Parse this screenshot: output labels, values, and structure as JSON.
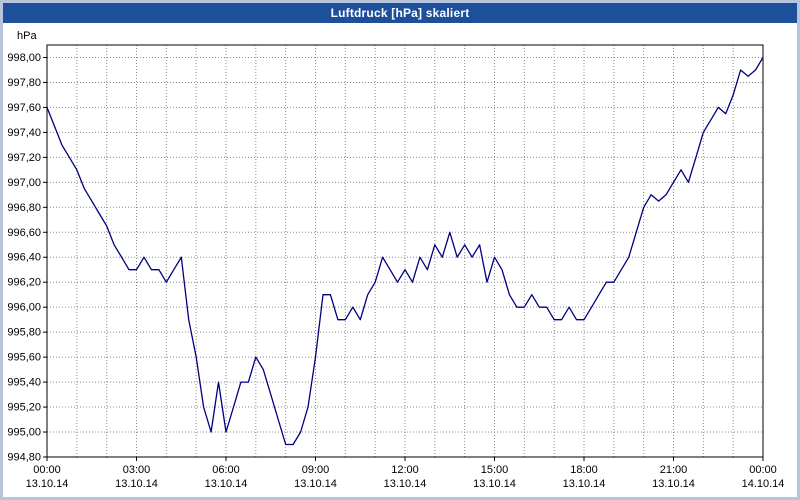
{
  "window": {
    "title": "Luftdruck [hPa] skaliert"
  },
  "colors": {
    "window_frame": "#b6c4de",
    "titlebar": "#1e4f9b",
    "titlebar_text": "#ffffff",
    "plot_background": "#ffffff",
    "line": "#000080",
    "grid": "#8a8a8a",
    "axis": "#000000",
    "label_text": "#000000"
  },
  "chart_data": {
    "type": "line",
    "title": "Luftdruck [hPa] skaliert",
    "xlabel": "",
    "ylabel": "hPa",
    "ylim": [
      994.8,
      998.0
    ],
    "ytick_step": 0.2,
    "grid": "dotted, hourly vertical lines and 0.20 hPa horizontal lines",
    "legend_position": "none",
    "yticks": [
      {
        "value": 994.8,
        "label": "994,80"
      },
      {
        "value": 995.0,
        "label": "995,00"
      },
      {
        "value": 995.2,
        "label": "995,20"
      },
      {
        "value": 995.4,
        "label": "995,40"
      },
      {
        "value": 995.6,
        "label": "995,60"
      },
      {
        "value": 995.8,
        "label": "995,80"
      },
      {
        "value": 996.0,
        "label": "996,00"
      },
      {
        "value": 996.2,
        "label": "996,20"
      },
      {
        "value": 996.4,
        "label": "996,40"
      },
      {
        "value": 996.6,
        "label": "996,60"
      },
      {
        "value": 996.8,
        "label": "996,80"
      },
      {
        "value": 997.0,
        "label": "997,00"
      },
      {
        "value": 997.2,
        "label": "997,20"
      },
      {
        "value": 997.4,
        "label": "997,40"
      },
      {
        "value": 997.6,
        "label": "997,60"
      },
      {
        "value": 997.8,
        "label": "997,80"
      },
      {
        "value": 998.0,
        "label": "998,00"
      }
    ],
    "xticks": [
      {
        "hour": 0,
        "time": "00:00",
        "date": "13.10.14"
      },
      {
        "hour": 3,
        "time": "03:00",
        "date": "13.10.14"
      },
      {
        "hour": 6,
        "time": "06:00",
        "date": "13.10.14"
      },
      {
        "hour": 9,
        "time": "09:00",
        "date": "13.10.14"
      },
      {
        "hour": 12,
        "time": "12:00",
        "date": "13.10.14"
      },
      {
        "hour": 15,
        "time": "15:00",
        "date": "13.10.14"
      },
      {
        "hour": 18,
        "time": "18:00",
        "date": "13.10.14"
      },
      {
        "hour": 21,
        "time": "21:00",
        "date": "13.10.14"
      },
      {
        "hour": 24,
        "time": "00:00",
        "date": "14.10.14"
      }
    ],
    "x_hours_total": 24,
    "series": [
      {
        "name": "Luftdruck",
        "unit": "hPa",
        "interval_minutes": 15,
        "values": [
          997.6,
          997.45,
          997.3,
          997.2,
          997.1,
          996.95,
          996.85,
          996.75,
          996.65,
          996.5,
          996.4,
          996.3,
          996.3,
          996.4,
          996.3,
          996.3,
          996.2,
          996.3,
          996.4,
          995.9,
          995.6,
          995.2,
          995.0,
          995.4,
          995.0,
          995.2,
          995.4,
          995.4,
          995.6,
          995.5,
          995.3,
          995.1,
          994.9,
          994.9,
          995.0,
          995.2,
          995.6,
          996.1,
          996.1,
          995.9,
          995.9,
          996.0,
          995.9,
          996.1,
          996.2,
          996.4,
          996.3,
          996.2,
          996.3,
          996.2,
          996.4,
          996.3,
          996.5,
          996.4,
          996.6,
          996.4,
          996.5,
          996.4,
          996.5,
          996.2,
          996.4,
          996.3,
          996.1,
          996.0,
          996.0,
          996.1,
          996.0,
          996.0,
          995.9,
          995.9,
          996.0,
          995.9,
          995.9,
          996.0,
          996.1,
          996.2,
          996.2,
          996.3,
          996.4,
          996.6,
          996.8,
          996.9,
          996.85,
          996.9,
          997.0,
          997.1,
          997.0,
          997.2,
          997.4,
          997.5,
          997.6,
          997.55,
          997.7,
          997.9,
          997.85,
          997.9,
          998.0
        ]
      }
    ]
  }
}
